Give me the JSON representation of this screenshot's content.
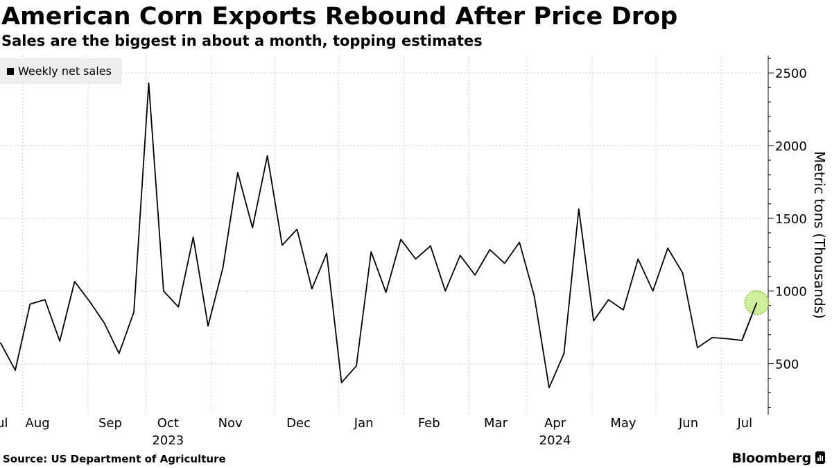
{
  "header": {
    "title": "American Corn Exports Rebound After Price Drop",
    "subtitle": "Sales are the biggest in about a month, topping estimates"
  },
  "footer": {
    "source": "Source: US Department of Agriculture",
    "brand": "Bloomberg"
  },
  "colors": {
    "line": "#000000",
    "highlight_fill": "#c8ec8c",
    "highlight_stroke": "#8cc63c",
    "grid": "#c8c8c8",
    "legend_bg": "#eeeeee"
  },
  "chart_data": {
    "type": "line",
    "title": "American Corn Exports Rebound After Price Drop",
    "subtitle": "Sales are the biggest in about a month, topping estimates",
    "ylabel": "Metric tons (Thousands)",
    "xlabel": "",
    "ylim": [
      150,
      2620
    ],
    "yticks": [
      500,
      1000,
      1500,
      2000,
      2500
    ],
    "grid": true,
    "legend": {
      "position": "top-left",
      "entries": [
        "Weekly net sales"
      ]
    },
    "y_axis_side": "right",
    "x_domain": [
      -0.03,
      51.4
    ],
    "x_month_labels": [
      {
        "label": "Jul",
        "x": 0.0
      },
      {
        "label": "Aug",
        "x": 2.5
      },
      {
        "label": "Sep",
        "x": 7.4
      },
      {
        "label": "Oct",
        "x": 11.3
      },
      {
        "label": "Nov",
        "x": 15.5
      },
      {
        "label": "Dec",
        "x": 20.1
      },
      {
        "label": "Jan",
        "x": 24.5
      },
      {
        "label": "Feb",
        "x": 28.9
      },
      {
        "label": "Mar",
        "x": 33.4
      },
      {
        "label": "Apr",
        "x": 37.4
      },
      {
        "label": "May",
        "x": 42.0
      },
      {
        "label": "Jun",
        "x": 46.4
      },
      {
        "label": "Jul",
        "x": 50.2
      }
    ],
    "x_year_labels": [
      {
        "label": "2023",
        "x": 11.3
      },
      {
        "label": "2024",
        "x": 37.4
      }
    ],
    "x_gridlines": [
      1.5,
      5.9,
      9.8,
      14.2,
      18.5,
      22.8,
      27.2,
      31.6,
      35.5,
      39.9,
      44.2,
      48.6
    ],
    "series": [
      {
        "name": "Weekly net sales",
        "x": [
          0,
          1,
          2,
          3,
          4,
          5,
          6,
          7,
          8,
          9,
          10,
          11,
          12,
          13,
          14,
          15,
          16,
          17,
          18,
          19,
          20,
          21,
          22,
          23,
          24,
          25,
          26,
          27,
          28,
          29,
          30,
          31,
          32,
          33,
          34,
          35,
          36,
          37,
          38,
          39,
          40,
          41,
          42,
          43,
          44,
          45,
          46,
          47,
          48,
          49,
          50
        ],
        "values": [
          645,
          455,
          910,
          940,
          655,
          1065,
          930,
          780,
          570,
          855,
          2430,
          1000,
          890,
          1370,
          760,
          1160,
          1815,
          1435,
          1930,
          1315,
          1425,
          1015,
          1260,
          370,
          485,
          1270,
          990,
          1355,
          1220,
          1310,
          1000,
          1245,
          1110,
          1285,
          1190,
          1335,
          965,
          335,
          570,
          1565,
          795,
          940,
          870,
          1220,
          1000,
          1295,
          1125,
          610,
          680,
          672,
          660
        ]
      }
    ],
    "highlight": {
      "series": "Weekly net sales",
      "x": 51,
      "value": 920
    },
    "final_point": {
      "x": 51,
      "value": 920
    }
  }
}
